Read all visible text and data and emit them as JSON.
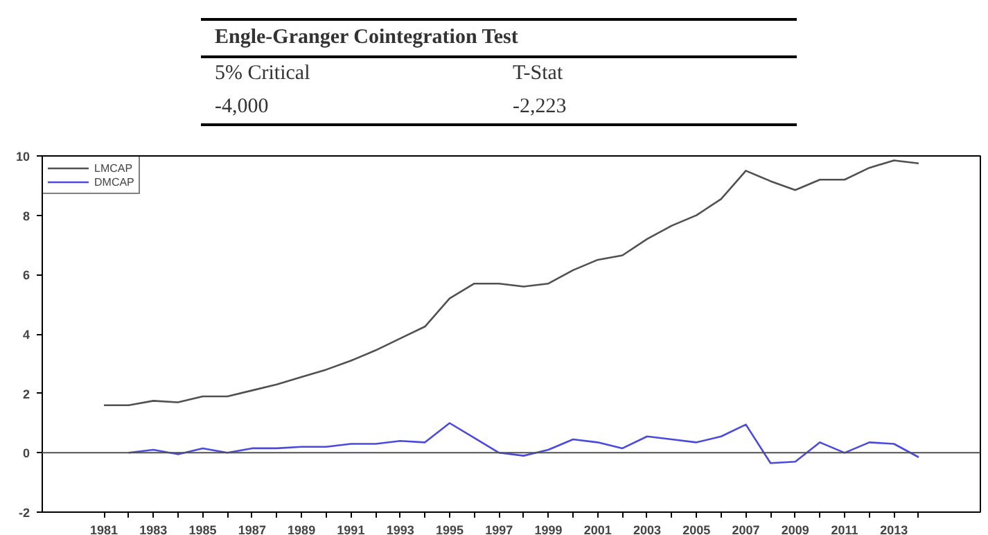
{
  "chart_data": {
    "type": "line",
    "annotations": [
      "Engle-Granger Cointegration Test",
      "5% Critical",
      "T-Stat",
      "-4,000",
      "-2,223"
    ],
    "xlim": [
      1978.5,
      2016.5
    ],
    "xticks": [
      1981,
      {
        "value": 1982,
        "label": null
      },
      1983,
      {
        "value": 1984,
        "label": null
      },
      1985,
      {
        "value": 1986,
        "label": null
      },
      1987,
      {
        "value": 1988,
        "label": null
      },
      1989,
      {
        "value": 1990,
        "label": null
      },
      1991,
      {
        "value": 1992,
        "label": null
      },
      1993,
      {
        "value": 1994,
        "label": null
      },
      1995,
      {
        "value": 1996,
        "label": null
      },
      1997,
      {
        "value": 1998,
        "label": null
      },
      1999,
      {
        "value": 2000,
        "label": null
      },
      2001,
      {
        "value": 2002,
        "label": null
      },
      2003,
      {
        "value": 2004,
        "label": null
      },
      2005,
      {
        "value": 2006,
        "label": null
      },
      2007,
      {
        "value": 2008,
        "label": null
      },
      2009,
      {
        "value": 2010,
        "label": null
      },
      2011,
      {
        "value": 2012,
        "label": null
      },
      2013,
      {
        "value": 2014,
        "label": null
      }
    ],
    "ylim": [
      -2,
      10
    ],
    "yticks": [
      -2,
      0,
      2,
      4,
      6,
      8,
      10
    ],
    "grid": false,
    "legend": "top left",
    "marker": "none",
    "line_style": "solid",
    "ref_lines": [
      {
        "axis": "y",
        "value": 0,
        "color": "#505050"
      }
    ],
    "series": [
      {
        "name": "LMCAP",
        "color": "#505050",
        "x": [
          1981,
          1982,
          1983,
          1984,
          1985,
          1986,
          1987,
          1988,
          1989,
          1990,
          1991,
          1992,
          1993,
          1994,
          1995,
          1996,
          1997,
          1998,
          1999,
          2000,
          2001,
          2002,
          2003,
          2004,
          2005,
          2006,
          2007,
          2008,
          2009,
          2010,
          2011,
          2012,
          2013,
          2014
        ],
        "values": [
          1.6,
          1.6,
          1.75,
          1.7,
          1.9,
          1.9,
          2.1,
          2.3,
          2.55,
          2.8,
          3.1,
          3.45,
          3.85,
          4.25,
          5.2,
          5.7,
          5.7,
          5.6,
          5.7,
          6.15,
          6.5,
          6.65,
          7.2,
          7.65,
          8.0,
          8.55,
          9.5,
          9.15,
          8.85,
          9.2,
          9.2,
          9.6,
          9.85,
          9.75
        ]
      },
      {
        "name": "DMCAP",
        "color": "#4a4adf",
        "x": [
          1982,
          1983,
          1984,
          1985,
          1986,
          1987,
          1988,
          1989,
          1990,
          1991,
          1992,
          1993,
          1994,
          1995,
          1996,
          1997,
          1998,
          1999,
          2000,
          2001,
          2002,
          2003,
          2004,
          2005,
          2006,
          2007,
          2008,
          2009,
          2010,
          2011,
          2012,
          2013,
          2014
        ],
        "values": [
          0,
          0.1,
          -0.05,
          0.15,
          0,
          0.15,
          0.15,
          0.2,
          0.2,
          0.3,
          0.3,
          0.4,
          0.35,
          1.0,
          0.5,
          0,
          -0.1,
          0.1,
          0.45,
          0.35,
          0.15,
          0.55,
          0.45,
          0.35,
          0.55,
          0.95,
          -0.35,
          -0.3,
          0.35,
          0,
          0.35,
          0.3,
          -0.15
        ]
      }
    ]
  }
}
